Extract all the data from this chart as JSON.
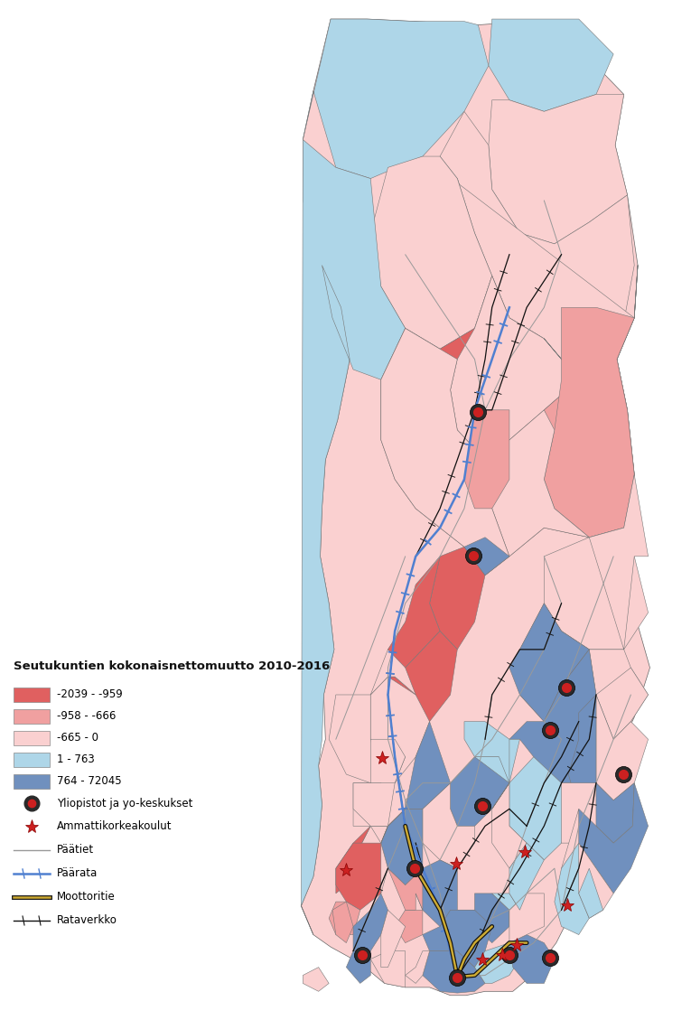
{
  "title": "Seutukuntien kokonaisnettomuutto 2010-2016",
  "legend_items": [
    [
      "-2039 - -959",
      "#E06060"
    ],
    [
      "-958 - -666",
      "#F0A0A0"
    ],
    [
      "-665 - 0",
      "#FAD0D0"
    ],
    [
      "1 - 763",
      "#AED6E8"
    ],
    [
      "764 - 72045",
      "#7090BE"
    ]
  ],
  "background_color": "#ffffff",
  "c_dark_red": "#E06060",
  "c_med_red": "#F0A0A0",
  "c_light_red": "#FAD0D0",
  "c_light_blue": "#AED6E8",
  "c_blue": "#7090BE",
  "legend_title_fontsize": 9.5,
  "legend_item_fontsize": 8.5
}
